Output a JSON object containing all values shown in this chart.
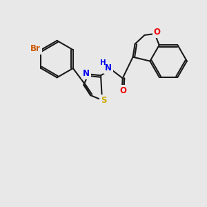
{
  "background_color": "#e8e8e8",
  "bond_color": "#1a1a1a",
  "bond_width": 1.5,
  "atom_colors": {
    "Br": "#cc5500",
    "N": "#0000ee",
    "O": "#ee0000",
    "S": "#ccaa00",
    "C": "#1a1a1a"
  },
  "font_size": 8.5
}
